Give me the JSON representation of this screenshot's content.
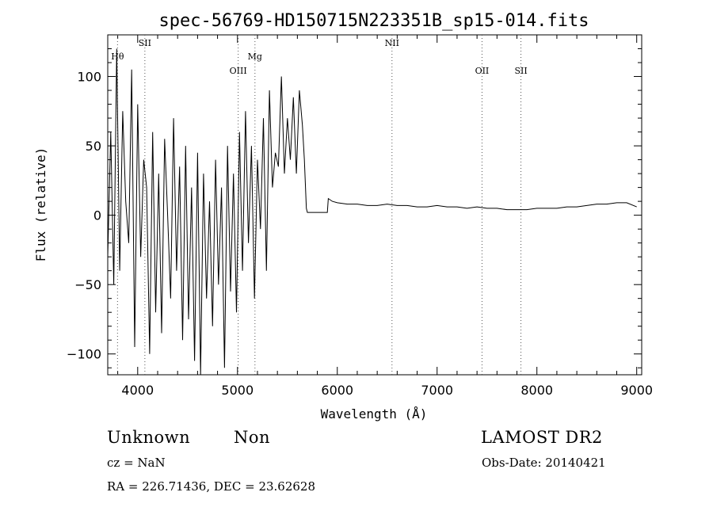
{
  "chart_data": {
    "type": "line",
    "title": "spec-56769-HD150715N223351B_sp15-014.fits",
    "xlabel": "Wavelength (Å)",
    "ylabel": "Flux (relative)",
    "xlim": [
      3700,
      9050
    ],
    "ylim": [
      -115,
      130
    ],
    "xticks": [
      4000,
      5000,
      6000,
      7000,
      8000,
      9000
    ],
    "yticks": [
      -100,
      -50,
      0,
      50,
      100
    ],
    "grid": false,
    "series": [
      {
        "x": [
          3700,
          3730,
          3760,
          3790,
          3820,
          3850,
          3880,
          3910,
          3940,
          3970,
          4000,
          4030,
          4060,
          4090,
          4120,
          4150,
          4180,
          4210,
          4240,
          4270,
          4300,
          4330,
          4360,
          4390,
          4420,
          4450,
          4480,
          4510,
          4540,
          4570,
          4600,
          4630,
          4660,
          4690,
          4720,
          4750,
          4780,
          4810,
          4840,
          4870,
          4900,
          4930,
          4960,
          4990,
          5020,
          5050,
          5080,
          5110,
          5140,
          5170,
          5200,
          5230,
          5260,
          5290,
          5320,
          5350,
          5380,
          5410,
          5440,
          5470,
          5500,
          5530,
          5560,
          5590,
          5620,
          5650,
          5670,
          5690,
          5700,
          5900,
          5910,
          5950,
          6000,
          6100,
          6200,
          6300,
          6400,
          6500,
          6600,
          6700,
          6800,
          6900,
          7000,
          7100,
          7200,
          7300,
          7400,
          7500,
          7600,
          7700,
          7800,
          7900,
          8000,
          8100,
          8200,
          8300,
          8400,
          8500,
          8600,
          8700,
          8800,
          8900,
          9000
        ],
        "y": [
          -30,
          60,
          -50,
          120,
          -40,
          75,
          10,
          -20,
          105,
          -95,
          80,
          -30,
          40,
          20,
          -100,
          60,
          -70,
          30,
          -85,
          55,
          0,
          -60,
          70,
          -40,
          35,
          -90,
          50,
          -75,
          20,
          -105,
          45,
          -115,
          30,
          -60,
          10,
          -80,
          40,
          -50,
          20,
          -110,
          50,
          -55,
          30,
          -70,
          60,
          -40,
          75,
          -20,
          50,
          -60,
          40,
          -10,
          70,
          -40,
          90,
          20,
          45,
          35,
          100,
          30,
          70,
          40,
          85,
          30,
          90,
          65,
          40,
          5,
          2,
          2,
          12,
          10,
          9,
          8,
          8,
          7,
          7,
          8,
          7,
          7,
          6,
          6,
          7,
          6,
          6,
          5,
          6,
          5,
          5,
          4,
          4,
          4,
          5,
          5,
          5,
          6,
          6,
          7,
          8,
          8,
          9,
          9,
          6
        ]
      }
    ],
    "lines": [
      {
        "label": "Hθ",
        "x": 3798,
        "level": 1
      },
      {
        "label": "SII",
        "x": 4072,
        "level": 0
      },
      {
        "label": "OIII",
        "x": 5007,
        "level": 2
      },
      {
        "label": "Mg",
        "x": 5175,
        "level": 1
      },
      {
        "label": "NII",
        "x": 6548,
        "level": 0
      },
      {
        "label": "OII",
        "x": 7450,
        "level": 2
      },
      {
        "label": "SII",
        "x": 7840,
        "level": 2
      }
    ]
  },
  "footer": {
    "class_label": "Unknown",
    "subclass_label": "Non",
    "survey": "LAMOST DR2",
    "cz": "cz = NaN",
    "obs_date": "Obs-Date: 20140421",
    "coords": "RA = 226.71436, DEC =  23.62628"
  }
}
